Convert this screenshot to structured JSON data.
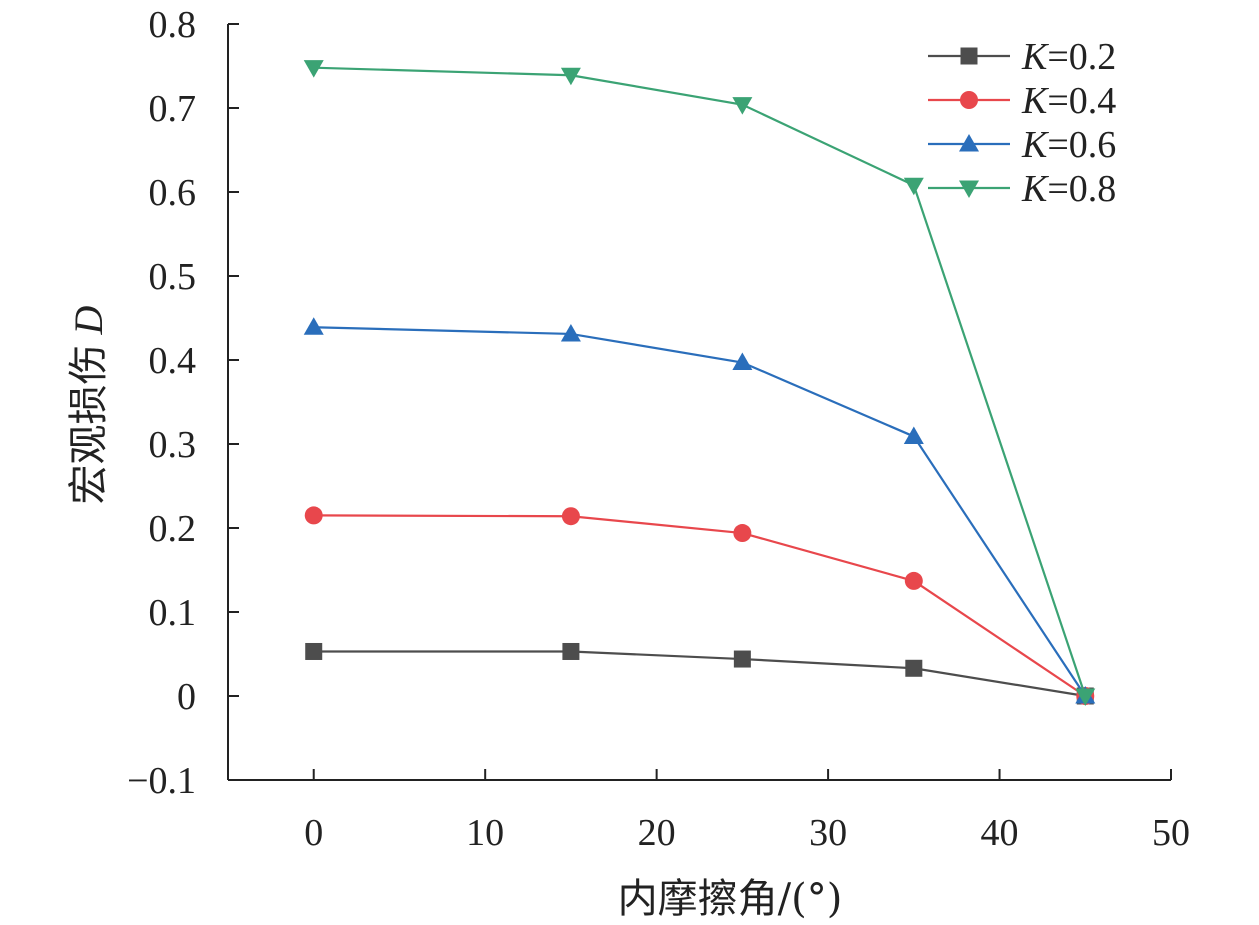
{
  "chart_data": {
    "type": "line",
    "title": "",
    "xlabel": "内摩擦角/(°)",
    "ylabel_main": "宏观损伤",
    "ylabel_var": "D",
    "xlim": [
      -5,
      50
    ],
    "ylim": [
      -0.1,
      0.8
    ],
    "xticks": [
      0,
      10,
      20,
      30,
      40,
      50
    ],
    "xtick_labels": [
      "0",
      "10",
      "20",
      "30",
      "40",
      "50"
    ],
    "yticks": [
      -0.1,
      0,
      0.1,
      0.2,
      0.3,
      0.4,
      0.5,
      0.6,
      0.7,
      0.8
    ],
    "ytick_labels": [
      "−0.1",
      "0",
      "0.1",
      "0.2",
      "0.3",
      "0.4",
      "0.5",
      "0.6",
      "0.7",
      "0.8"
    ],
    "x": [
      0,
      15,
      25,
      35,
      45
    ],
    "legend_position": "top-right",
    "grid": false,
    "series": [
      {
        "name": "K=0.2",
        "var": "K",
        "val": "=0.2",
        "color": "#4d4d4d",
        "marker": "square",
        "values": [
          0.053,
          0.053,
          0.044,
          0.033,
          0.0
        ]
      },
      {
        "name": "K=0.4",
        "var": "K",
        "val": "=0.4",
        "color": "#e8474c",
        "marker": "circle",
        "values": [
          0.215,
          0.214,
          0.194,
          0.137,
          0.0
        ]
      },
      {
        "name": "K=0.6",
        "var": "K",
        "val": "=0.6",
        "color": "#2a6ebb",
        "marker": "triangle-up",
        "values": [
          0.439,
          0.431,
          0.397,
          0.309,
          0.0
        ]
      },
      {
        "name": "K=0.8",
        "var": "K",
        "val": "=0.8",
        "color": "#3ba374",
        "marker": "triangle-down",
        "values": [
          0.748,
          0.739,
          0.704,
          0.608,
          0.0
        ]
      }
    ]
  }
}
